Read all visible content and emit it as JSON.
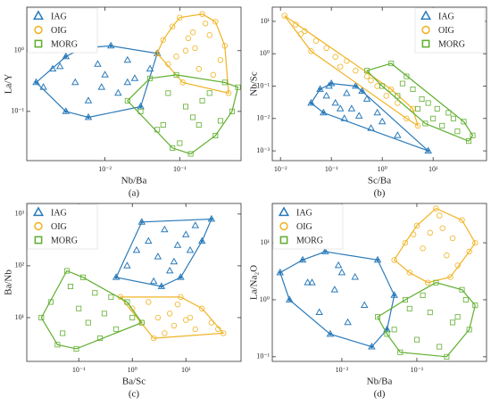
{
  "chart_data": [
    {
      "type": "scatter",
      "label": "(a)",
      "x_label": "Nb/Ba",
      "y_label": "La/Y",
      "log_x": true,
      "log_y": true,
      "grid": false,
      "legend": "upper left",
      "xlim": [
        0.0009,
        0.66
      ],
      "ylim": [
        0.0155,
        5.2
      ],
      "xticks": [
        {
          "value": 0.01,
          "label": "10⁻²"
        },
        {
          "value": 0.1,
          "label": "10⁻¹"
        }
      ],
      "yticks": [
        {
          "value": 1,
          "label": "10⁰"
        },
        {
          "value": 0.1,
          "label": "10⁻¹"
        }
      ],
      "series": [
        {
          "name": "IAG",
          "color": "#2b7bba",
          "marker": "triangle",
          "x": [
            0.0015,
            0.002,
            0.003,
            0.004,
            0.005,
            0.006,
            0.008,
            0.01,
            0.012,
            0.015,
            0.02,
            0.025,
            0.03,
            0.04,
            0.05,
            0.006,
            0.003,
            0.009,
            0.02,
            0.0025,
            0.0012
          ],
          "y": [
            0.25,
            0.5,
            0.8,
            0.3,
            1.1,
            0.15,
            0.6,
            0.4,
            1.2,
            0.2,
            0.7,
            0.35,
            0.12,
            0.5,
            0.9,
            0.08,
            0.1,
            0.25,
            0.3,
            0.55,
            0.3
          ]
        },
        {
          "name": "OIG",
          "color": "#f0b323",
          "marker": "circle",
          "x": [
            0.06,
            0.08,
            0.1,
            0.12,
            0.15,
            0.2,
            0.25,
            0.3,
            0.4,
            0.07,
            0.09,
            0.13,
            0.18,
            0.22,
            0.35,
            0.11,
            0.16,
            0.28,
            0.05,
            0.45
          ],
          "y": [
            1.5,
            2.5,
            3.5,
            1,
            2,
            4,
            1.8,
            3,
            1.2,
            0.6,
            0.8,
            1.6,
            0.5,
            2.8,
            0.7,
            0.3,
            1.1,
            0.4,
            0.9,
            0.2
          ]
        },
        {
          "name": "MORG",
          "color": "#5fae2e",
          "marker": "square",
          "x": [
            0.03,
            0.05,
            0.07,
            0.1,
            0.15,
            0.2,
            0.3,
            0.4,
            0.5,
            0.04,
            0.08,
            0.12,
            0.18,
            0.25,
            0.06,
            0.09,
            0.14,
            0.35,
            0.6,
            0.02
          ],
          "y": [
            0.1,
            0.05,
            0.2,
            0.03,
            0.08,
            0.15,
            0.04,
            0.3,
            0.1,
            0.35,
            0.025,
            0.12,
            0.06,
            0.2,
            0.06,
            0.4,
            0.02,
            0.07,
            0.25,
            0.15
          ]
        }
      ]
    },
    {
      "type": "scatter",
      "label": "(b)",
      "x_label": "Sc/Ba",
      "y_label": "Nb/Sc",
      "log_x": true,
      "log_y": true,
      "grid": false,
      "legend": "upper right",
      "xlim": [
        0.0069,
        112
      ],
      "ylim": [
        0.0005,
        27.5
      ],
      "xticks": [
        {
          "value": 0.01,
          "label": "10⁻²"
        },
        {
          "value": 0.1,
          "label": "10⁻¹"
        },
        {
          "value": 1,
          "label": "10⁰"
        },
        {
          "value": 10,
          "label": "10¹"
        }
      ],
      "yticks": [
        {
          "value": 10,
          "label": "10¹"
        },
        {
          "value": 1,
          "label": "10⁰"
        },
        {
          "value": 0.1,
          "label": "10⁻¹"
        },
        {
          "value": 0.01,
          "label": "10⁻²"
        },
        {
          "value": 0.001,
          "label": "10⁻³"
        }
      ],
      "series": [
        {
          "name": "IAG",
          "color": "#2b7bba",
          "marker": "triangle",
          "x": [
            0.04,
            0.06,
            0.08,
            0.1,
            0.15,
            0.2,
            0.3,
            0.5,
            0.8,
            1,
            0.07,
            0.12,
            0.25,
            0.4,
            0.6,
            0.09,
            0.18,
            0.35,
            2,
            8
          ],
          "y": [
            0.03,
            0.08,
            0.05,
            0.12,
            0.02,
            0.06,
            0.1,
            0.04,
            0.015,
            0.008,
            0.015,
            0.03,
            0.02,
            0.07,
            0.005,
            0.1,
            0.01,
            0.012,
            0.003,
            0.001
          ]
        },
        {
          "name": "OIG",
          "color": "#f0b323",
          "marker": "circle",
          "x": [
            0.012,
            0.02,
            0.03,
            0.05,
            0.08,
            0.12,
            0.2,
            0.3,
            0.5,
            0.8,
            1.2,
            2,
            3,
            5,
            0.04,
            0.15,
            0.6,
            1.5,
            0.025,
            4
          ],
          "y": [
            15,
            8,
            5,
            2.5,
            1.5,
            0.8,
            0.6,
            0.3,
            0.2,
            0.1,
            0.05,
            0.03,
            0.01,
            0.006,
            1.2,
            0.4,
            0.15,
            0.08,
            4,
            0.02
          ]
        },
        {
          "name": "MORG",
          "color": "#5fae2e",
          "marker": "square",
          "x": [
            0.5,
            1,
            2,
            3,
            5,
            8,
            10,
            15,
            20,
            30,
            40,
            60,
            1.5,
            4,
            6,
            12,
            25,
            2.5,
            7,
            50
          ],
          "y": [
            0.3,
            0.1,
            0.05,
            0.2,
            0.02,
            0.03,
            0.01,
            0.006,
            0.015,
            0.004,
            0.008,
            0.003,
            0.5,
            0.08,
            0.04,
            0.02,
            0.01,
            0.12,
            0.007,
            0.002
          ]
        }
      ]
    },
    {
      "type": "scatter",
      "label": "(c)",
      "x_label": "Ba/Sc",
      "y_label": "Ba/Nb",
      "log_x": true,
      "log_y": true,
      "grid": false,
      "legend": "upper left",
      "xlim": [
        0.0107,
        107
      ],
      "ylim": [
        1.43,
        1600
      ],
      "xticks": [
        {
          "value": 0.1,
          "label": "10⁻¹"
        },
        {
          "value": 1,
          "label": "10⁰"
        },
        {
          "value": 10,
          "label": "10¹"
        }
      ],
      "yticks": [
        {
          "value": 1000,
          "label": "10³"
        },
        {
          "value": 100,
          "label": "10²"
        },
        {
          "value": 10,
          "label": "10¹"
        }
      ],
      "series": [
        {
          "name": "IAG",
          "color": "#2b7bba",
          "marker": "triangle",
          "x": [
            0.8,
            1.2,
            2,
            3,
            4,
            5,
            7,
            10,
            15,
            20,
            2.5,
            6,
            12,
            1.5,
            8,
            30,
            0.5,
            3.5
          ],
          "y": [
            100,
            200,
            300,
            150,
            500,
            80,
            250,
            400,
            600,
            300,
            50,
            120,
            200,
            700,
            60,
            800,
            60,
            40
          ]
        },
        {
          "name": "OIG",
          "color": "#f0b323",
          "marker": "circle",
          "x": [
            1,
            1.5,
            2,
            3,
            4,
            5,
            6,
            8,
            10,
            15,
            20,
            30,
            50,
            2.5,
            7,
            12,
            0.6,
            40
          ],
          "y": [
            15,
            8,
            20,
            10,
            5,
            12,
            7,
            25,
            9,
            6,
            15,
            8,
            5,
            4,
            18,
            10,
            25,
            6
          ]
        },
        {
          "name": "MORG",
          "color": "#5fae2e",
          "marker": "square",
          "x": [
            0.02,
            0.03,
            0.05,
            0.07,
            0.1,
            0.15,
            0.2,
            0.3,
            0.5,
            0.8,
            1,
            0.04,
            0.12,
            0.25,
            0.06,
            0.4,
            1.5,
            0.09
          ],
          "y": [
            10,
            20,
            5,
            40,
            15,
            8,
            30,
            12,
            6,
            20,
            10,
            3,
            60,
            4,
            80,
            25,
            8,
            2.5
          ]
        }
      ]
    },
    {
      "type": "scatter",
      "label": "(d)",
      "x_label": "Nb/Ba",
      "y_label": "La/Na₂O",
      "log_x": true,
      "log_y": true,
      "grid": false,
      "legend": "upper left",
      "xlim": [
        0.00118,
        0.85
      ],
      "ylim": [
        0.083,
        49
      ],
      "xticks": [
        {
          "value": 0.01,
          "label": "10⁻²"
        },
        {
          "value": 0.1,
          "label": "10⁻¹"
        }
      ],
      "yticks": [
        {
          "value": 10,
          "label": "10¹"
        },
        {
          "value": 1,
          "label": "10⁰"
        },
        {
          "value": 0.1,
          "label": "10⁻¹"
        }
      ],
      "series": [
        {
          "name": "IAG",
          "color": "#2b7bba",
          "marker": "triangle",
          "x": [
            0.0015,
            0.002,
            0.003,
            0.004,
            0.005,
            0.006,
            0.008,
            0.01,
            0.012,
            0.015,
            0.02,
            0.03,
            0.04,
            0.05,
            0.007,
            0.025,
            0.009,
            0.0035
          ],
          "y": [
            3,
            1,
            5,
            2,
            0.6,
            7,
            1.5,
            3,
            0.4,
            2.5,
            0.8,
            5,
            0.3,
            1.2,
            0.25,
            0.15,
            4,
            2
          ]
        },
        {
          "name": "OIG",
          "color": "#f0b323",
          "marker": "circle",
          "x": [
            0.05,
            0.07,
            0.1,
            0.12,
            0.15,
            0.2,
            0.25,
            0.3,
            0.4,
            0.6,
            0.08,
            0.18,
            0.35,
            0.14,
            0.22,
            0.5,
            0.09,
            0.28
          ],
          "y": [
            5,
            10,
            20,
            8,
            15,
            30,
            6,
            12,
            25,
            10,
            3,
            40,
            4,
            2,
            18,
            7,
            14,
            2.5
          ]
        },
        {
          "name": "MORG",
          "color": "#5fae2e",
          "marker": "square",
          "x": [
            0.03,
            0.05,
            0.07,
            0.1,
            0.15,
            0.2,
            0.3,
            0.4,
            0.6,
            0.04,
            0.12,
            0.25,
            0.08,
            0.5,
            0.18,
            0.35,
            0.06,
            0.45
          ],
          "y": [
            0.5,
            0.3,
            1,
            0.2,
            0.6,
            0.15,
            0.4,
            1.5,
            0.8,
            0.25,
            1.2,
            0.1,
            0.7,
            0.3,
            2,
            0.5,
            0.12,
            1
          ]
        }
      ]
    }
  ]
}
